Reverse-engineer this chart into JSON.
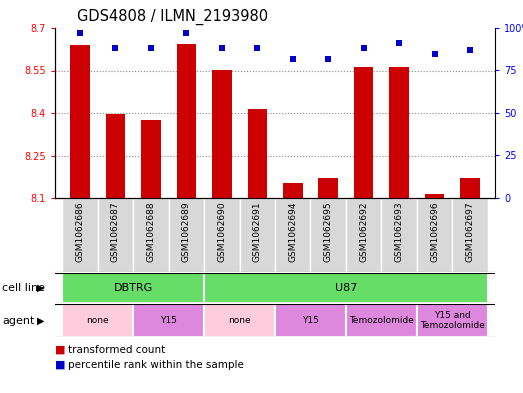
{
  "title": "GDS4808 / ILMN_2193980",
  "samples": [
    "GSM1062686",
    "GSM1062687",
    "GSM1062688",
    "GSM1062689",
    "GSM1062690",
    "GSM1062691",
    "GSM1062694",
    "GSM1062695",
    "GSM1062692",
    "GSM1062693",
    "GSM1062696",
    "GSM1062697"
  ],
  "bar_values": [
    8.64,
    8.395,
    8.375,
    8.645,
    8.553,
    8.413,
    8.152,
    8.172,
    8.562,
    8.562,
    8.113,
    8.172
  ],
  "percentile_values": [
    97,
    88,
    88,
    97,
    88,
    88,
    82,
    82,
    88,
    91,
    85,
    87
  ],
  "bar_color": "#cc0000",
  "dot_color": "#0000cc",
  "ylim_left": [
    8.1,
    8.7
  ],
  "ylim_right": [
    0,
    100
  ],
  "yticks_left": [
    8.1,
    8.25,
    8.4,
    8.55,
    8.7
  ],
  "yticks_right": [
    0,
    25,
    50,
    75,
    100
  ],
  "yticklabels_right": [
    "0",
    "25",
    "50",
    "75",
    "100%"
  ],
  "cell_line_groups": [
    {
      "label": "DBTRG",
      "start": 0,
      "end": 3
    },
    {
      "label": "U87",
      "start": 4,
      "end": 11
    }
  ],
  "agent_render": [
    {
      "label": "none",
      "start": 0,
      "end": 1,
      "color": "#ffccdd"
    },
    {
      "label": "Y15",
      "start": 2,
      "end": 3,
      "color": "#dd88dd"
    },
    {
      "label": "none",
      "start": 4,
      "end": 5,
      "color": "#ffccdd"
    },
    {
      "label": "Y15",
      "start": 6,
      "end": 7,
      "color": "#dd88dd"
    },
    {
      "label": "Temozolomide",
      "start": 8,
      "end": 9,
      "color": "#dd88dd"
    },
    {
      "label": "Y15 and\nTemozolomide",
      "start": 10,
      "end": 11,
      "color": "#dd88dd"
    }
  ],
  "green_color": "#66dd66",
  "bar_width": 0.55,
  "grid_color": "#888888",
  "sample_box_color": "#d8d8d8",
  "title_fontsize": 10.5,
  "tick_fontsize": 7,
  "label_fontsize": 6.5,
  "row_label_fontsize": 8,
  "legend_fontsize": 7.5
}
